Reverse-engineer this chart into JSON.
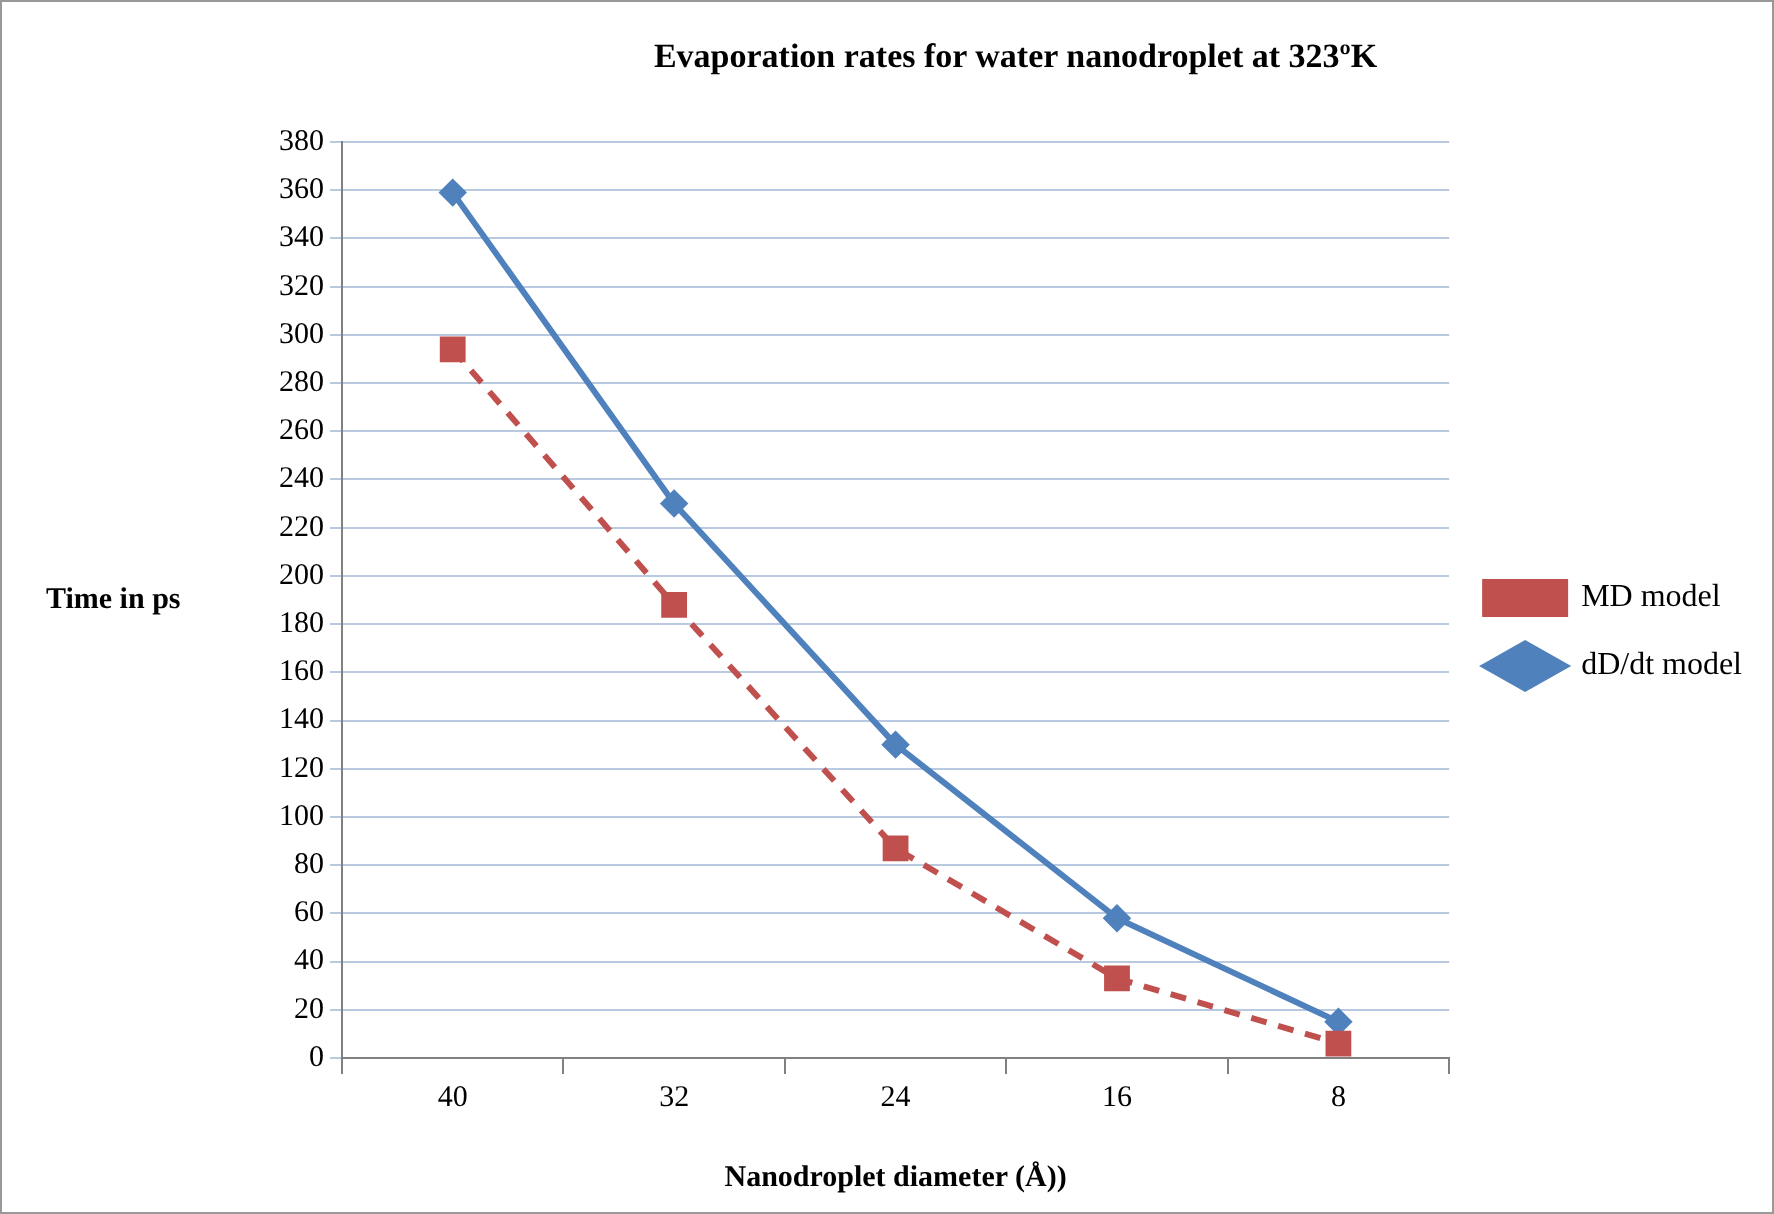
{
  "chart_data": {
    "type": "line",
    "title": "Evaporation rates for water nanodroplet at 323ºK",
    "xlabel": "Nanodroplet diameter (Å))",
    "ylabel": "Time in ps",
    "categories": [
      "40",
      "32",
      "24",
      "16",
      "8"
    ],
    "series": [
      {
        "name": "MD model",
        "color": "#c0504d",
        "values": [
          294,
          188,
          87,
          33,
          6
        ],
        "marker": "square",
        "line_style": "dashed"
      },
      {
        "name": "dD/dt model",
        "color": "#4f81bd",
        "values": [
          359,
          230,
          130,
          58,
          15
        ],
        "marker": "diamond",
        "line_style": "solid"
      }
    ],
    "ylim": [
      0,
      380
    ],
    "yticks": [
      0,
      20,
      40,
      60,
      80,
      100,
      120,
      140,
      160,
      180,
      200,
      220,
      240,
      260,
      280,
      300,
      320,
      340,
      360,
      380
    ],
    "grid": "y",
    "legend": "right"
  }
}
